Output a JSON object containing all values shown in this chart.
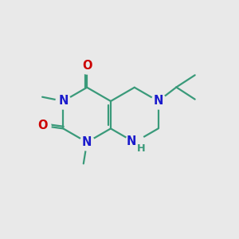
{
  "bg_color": "#e9e9e9",
  "bond_color": "#3a9a7a",
  "n_color": "#1a1acc",
  "o_color": "#cc0000",
  "h_color": "#3a9a7a",
  "line_width": 1.6,
  "font_size": 10.5,
  "xlim": [
    0,
    10
  ],
  "ylim": [
    0,
    10
  ],
  "lcx": 3.6,
  "lcy": 5.2,
  "R": 1.18
}
